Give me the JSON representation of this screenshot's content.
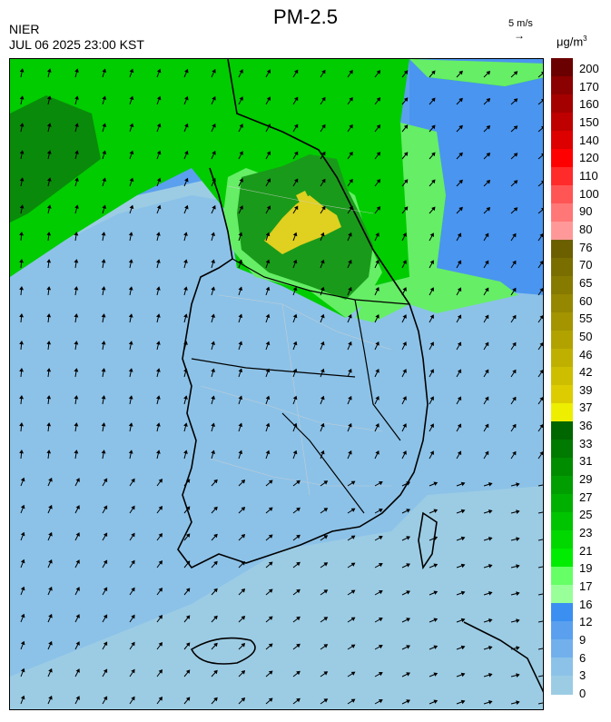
{
  "header": {
    "title": "PM-2.5",
    "org": "NIER",
    "timestamp": "JUL 06 2025 23:00 KST",
    "wind_scale": "5 m/s",
    "unit": "μg/m",
    "unit_exp": "3"
  },
  "legend": {
    "labels": [
      "200",
      "170",
      "160",
      "150",
      "140",
      "120",
      "110",
      "100",
      "90",
      "80",
      "76",
      "70",
      "65",
      "60",
      "55",
      "50",
      "46",
      "42",
      "39",
      "37",
      "36",
      "33",
      "31",
      "29",
      "27",
      "25",
      "23",
      "21",
      "19",
      "17",
      "16",
      "12",
      "9",
      "6",
      "3",
      "0"
    ],
    "colors": [
      "#6b0000",
      "#8b0000",
      "#a50000",
      "#be0000",
      "#dc0000",
      "#ff0000",
      "#ff2a2a",
      "#ff5555",
      "#ff7777",
      "#ff9999",
      "#6b5f00",
      "#7a6e00",
      "#877a00",
      "#958700",
      "#a39400",
      "#b1a200",
      "#bfb000",
      "#cdbe00",
      "#dccc00",
      "#eeee00",
      "#006600",
      "#007a00",
      "#008c00",
      "#009e00",
      "#00b000",
      "#00c400",
      "#00d800",
      "#00ec00",
      "#66ff66",
      "#99ff99",
      "#3a8ff0",
      "#5aa0ee",
      "#72b0ec",
      "#8cc2e8",
      "#9ccce4"
    ]
  },
  "map": {
    "colors": {
      "sea": "#9ccce4",
      "light_blue": "#8cc2e8",
      "blue": "#5aa0ee",
      "light_green": "#66ee66",
      "green": "#00cc00",
      "dark_green": "#1a9a1a",
      "darker_green": "#0a8a0a",
      "yellow": "#e0d020"
    }
  }
}
